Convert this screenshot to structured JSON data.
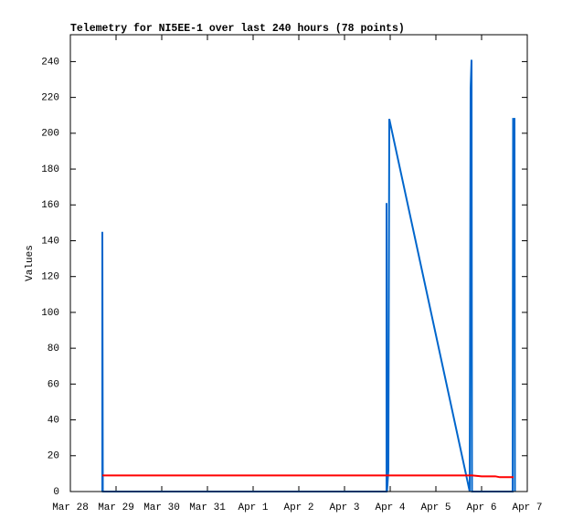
{
  "chart_data": {
    "type": "line",
    "title": "Telemetry for NI5EE-1 over last 240 hours (78 points)",
    "y_label": "Values",
    "xlim": [
      0,
      10
    ],
    "xticks": [
      {
        "value": 0,
        "label": "Mar 28"
      },
      {
        "value": 1,
        "label": "Mar 29"
      },
      {
        "value": 2,
        "label": "Mar 30"
      },
      {
        "value": 3,
        "label": "Mar 31"
      },
      {
        "value": 4,
        "label": "Apr 1"
      },
      {
        "value": 5,
        "label": "Apr 2"
      },
      {
        "value": 6,
        "label": "Apr 3"
      },
      {
        "value": 7,
        "label": "Apr 4"
      },
      {
        "value": 8,
        "label": "Apr 5"
      },
      {
        "value": 9,
        "label": "Apr 6"
      },
      {
        "value": 10,
        "label": "Apr 7"
      }
    ],
    "ylim": [
      0,
      255
    ],
    "yticks": [
      0,
      20,
      40,
      60,
      80,
      100,
      120,
      140,
      160,
      180,
      200,
      220,
      240
    ],
    "series": [
      {
        "color": "#0066cc",
        "x": [
          0.7,
          0.7,
          0.71,
          6.92,
          6.92,
          6.93,
          6.96,
          6.98,
          8.74,
          8.76,
          8.78,
          8.79,
          9.68,
          9.69,
          9.72,
          9.73
        ],
        "values": [
          0,
          145,
          0,
          0,
          161,
          0,
          12,
          208,
          0,
          225,
          241,
          0,
          0,
          208,
          208,
          0
        ]
      },
      {
        "color": "#ff0000",
        "x": [
          0.7,
          8.8,
          9.0,
          9.3,
          9.4,
          9.7
        ],
        "values": [
          9,
          9,
          8.5,
          8.5,
          8,
          8
        ]
      }
    ]
  }
}
